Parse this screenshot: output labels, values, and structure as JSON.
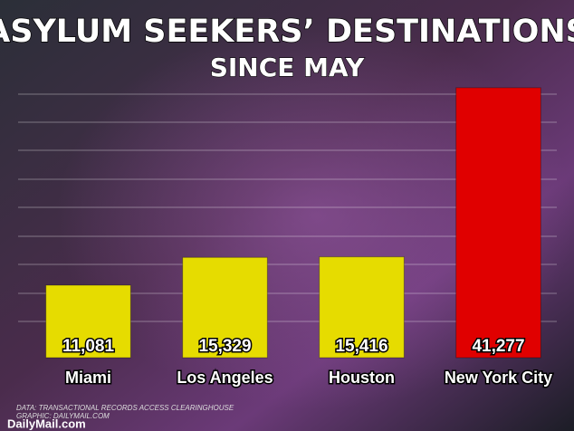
{
  "chart_data": {
    "type": "bar",
    "title": "ASYLUM SEEKERS’ DESTINATIONS",
    "subtitle": "SINCE MAY",
    "categories": [
      "Miami",
      "Los Angeles",
      "Houston",
      "New York City"
    ],
    "values": [
      11081,
      15329,
      15416,
      41277
    ],
    "value_labels": [
      "11,081",
      "15,329",
      "15,416",
      "41,277"
    ],
    "colors": [
      "#e6dc00",
      "#e6dc00",
      "#e6dc00",
      "#e00000"
    ],
    "ylim": [
      0,
      45000
    ],
    "source": "DATA: TRANSACTIONAL RECORDS ACCESS CLEARINGHOUSE",
    "credit": "GRAPHIC: DAILYMAIL.COM",
    "brand": "DailyMail.com"
  }
}
